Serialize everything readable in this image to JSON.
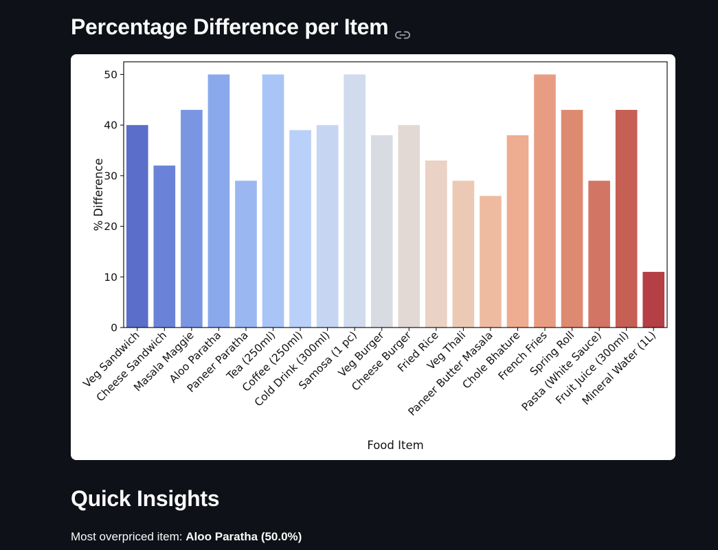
{
  "section1": {
    "title": "Percentage Difference per Item",
    "anchor_icon": "link-icon"
  },
  "chart_data": {
    "type": "bar",
    "title": "",
    "xlabel": "Food Item",
    "ylabel": "% Difference",
    "ylim": [
      0,
      52.5
    ],
    "yticks": [
      0,
      10,
      20,
      30,
      40,
      50
    ],
    "grid": false,
    "legend": "none",
    "categories": [
      "Veg Sandwich",
      "Cheese Sandwich",
      "Masala Maggie",
      "Aloo Paratha",
      "Paneer Paratha",
      "Tea (250ml)",
      "Coffee (250ml)",
      "Cold Drink (300ml)",
      "Samosa (1 pc)",
      "Veg Burger",
      "Cheese Burger",
      "Fried Rice",
      "Veg Thali",
      "Paneer Butter Masala",
      "Chole Bhature",
      "French Fries",
      "Spring Roll",
      "Pasta (White Sauce)",
      "Fruit Juice (300ml)",
      "Mineral Water (1L)"
    ],
    "values": [
      40,
      32,
      43,
      50,
      29,
      50,
      39,
      40,
      50,
      38,
      40,
      33,
      29,
      26,
      38,
      50,
      43,
      29,
      43,
      11
    ],
    "colors": [
      "#5b6ec9",
      "#6a83d8",
      "#7a96e2",
      "#8aa8ec",
      "#9ab7f1",
      "#a9c4f6",
      "#b9d0f8",
      "#c6d6f2",
      "#d0dbed",
      "#d8dbe2",
      "#e3d9d4",
      "#ead2c5",
      "#ecc9b5",
      "#eebba1",
      "#eeac90",
      "#e89d82",
      "#dd8a71",
      "#d27564",
      "#c65f54",
      "#b43f45"
    ]
  },
  "section2": {
    "title": "Quick Insights",
    "insight_label": "Most overpriced item: ",
    "insight_value": "Aloo Paratha (50.0%)"
  }
}
